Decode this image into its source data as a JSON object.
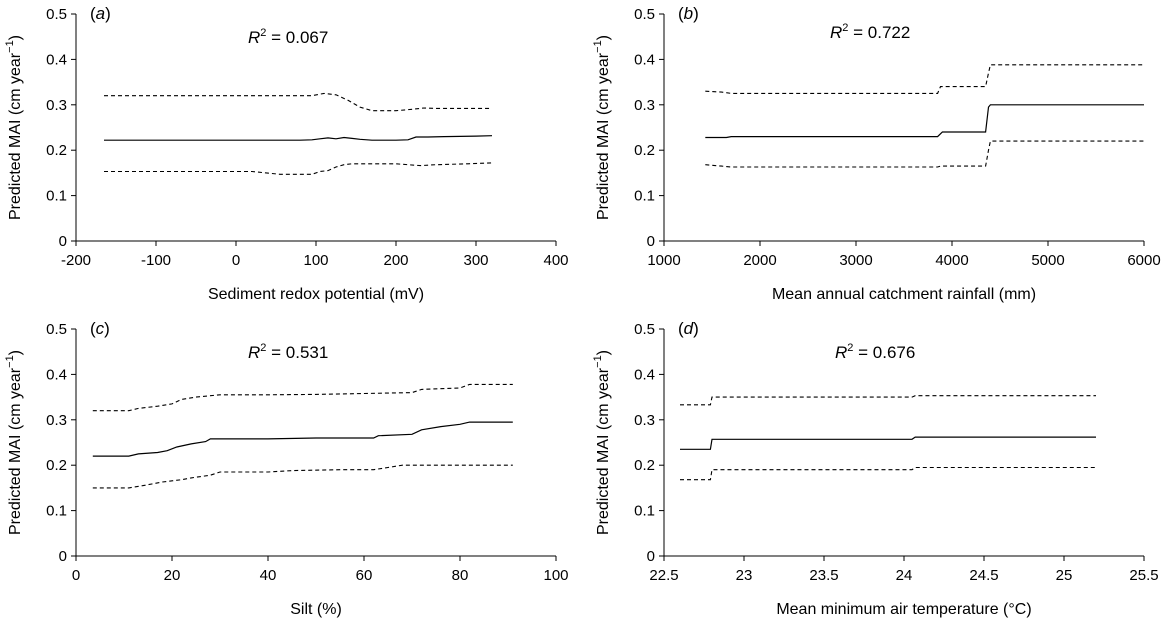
{
  "chart_data": [
    {
      "type": "line",
      "panel_label": "a",
      "r2_label": "R",
      "r2_exp": "2",
      "r2_value": "= 0.067",
      "xlabel": "Sediment redox potential (mV)",
      "ylabel": "Predicted MAI (cm year",
      "ylabel_sup": "−1",
      "ylabel_end": ")",
      "xlim": [
        -200,
        400
      ],
      "ylim": [
        0,
        0.5
      ],
      "x_ticks": [
        -200,
        -100,
        0,
        100,
        200,
        300,
        400
      ],
      "y_ticks": [
        0,
        0.1,
        0.2,
        0.3,
        0.4,
        0.5
      ],
      "series": [
        {
          "name": "upper",
          "style": "dashed",
          "x": [
            -165,
            95,
            110,
            125,
            140,
            155,
            170,
            200,
            220,
            235,
            250,
            300,
            320
          ],
          "y": [
            0.32,
            0.32,
            0.325,
            0.322,
            0.31,
            0.295,
            0.287,
            0.287,
            0.29,
            0.293,
            0.292,
            0.292,
            0.292
          ]
        },
        {
          "name": "predicted",
          "style": "solid",
          "x": [
            -165,
            80,
            95,
            105,
            115,
            125,
            135,
            145,
            155,
            170,
            200,
            215,
            225,
            240,
            260,
            300,
            320
          ],
          "y": [
            0.222,
            0.222,
            0.223,
            0.225,
            0.227,
            0.225,
            0.228,
            0.226,
            0.224,
            0.222,
            0.222,
            0.223,
            0.229,
            0.229,
            0.23,
            0.231,
            0.232
          ]
        },
        {
          "name": "lower",
          "style": "dashed",
          "x": [
            -165,
            20,
            55,
            95,
            105,
            115,
            125,
            135,
            145,
            170,
            200,
            215,
            230,
            250,
            290,
            320
          ],
          "y": [
            0.153,
            0.153,
            0.147,
            0.147,
            0.153,
            0.155,
            0.163,
            0.168,
            0.17,
            0.17,
            0.17,
            0.168,
            0.166,
            0.168,
            0.17,
            0.172
          ]
        }
      ]
    },
    {
      "type": "line",
      "panel_label": "b",
      "r2_label": "R",
      "r2_exp": "2",
      "r2_value": "= 0.722",
      "xlabel": "Mean annual catchment rainfall (mm)",
      "ylabel": "Predicted MAI (cm year",
      "ylabel_sup": "−1",
      "ylabel_end": ")",
      "xlim": [
        1000,
        6000
      ],
      "ylim": [
        0,
        0.5
      ],
      "x_ticks": [
        1000,
        2000,
        3000,
        4000,
        5000,
        6000
      ],
      "y_ticks": [
        0,
        0.1,
        0.2,
        0.3,
        0.4,
        0.5
      ],
      "series": [
        {
          "name": "upper",
          "style": "dashed",
          "x": [
            1430,
            1600,
            1700,
            3850,
            3880,
            4350,
            4380,
            4400,
            6000
          ],
          "y": [
            0.33,
            0.328,
            0.325,
            0.325,
            0.34,
            0.34,
            0.37,
            0.388,
            0.388
          ]
        },
        {
          "name": "predicted",
          "style": "solid",
          "x": [
            1430,
            1650,
            1700,
            3850,
            3900,
            4350,
            4380,
            4400,
            6000
          ],
          "y": [
            0.228,
            0.228,
            0.23,
            0.23,
            0.24,
            0.24,
            0.295,
            0.3,
            0.3
          ]
        },
        {
          "name": "lower",
          "style": "dashed",
          "x": [
            1430,
            1600,
            1700,
            3850,
            3880,
            4350,
            4380,
            4400,
            6000
          ],
          "y": [
            0.168,
            0.165,
            0.163,
            0.163,
            0.165,
            0.165,
            0.2,
            0.22,
            0.22
          ]
        }
      ]
    },
    {
      "type": "line",
      "panel_label": "c",
      "r2_label": "R",
      "r2_exp": "2",
      "r2_value": "= 0.531",
      "xlabel": "Silt (%)",
      "ylabel": "Predicted MAI (cm year",
      "ylabel_sup": "−1",
      "ylabel_end": ")",
      "xlim": [
        0,
        100
      ],
      "ylim": [
        0,
        0.5
      ],
      "x_ticks": [
        0,
        20,
        40,
        60,
        80,
        100
      ],
      "y_ticks": [
        0,
        0.1,
        0.2,
        0.3,
        0.4,
        0.5
      ],
      "series": [
        {
          "name": "upper",
          "style": "dashed",
          "x": [
            3.5,
            11,
            13,
            17,
            20,
            22,
            25,
            28,
            30,
            40,
            50,
            60,
            70,
            72,
            80,
            82,
            91
          ],
          "y": [
            0.32,
            0.32,
            0.325,
            0.33,
            0.335,
            0.345,
            0.35,
            0.353,
            0.355,
            0.355,
            0.356,
            0.358,
            0.36,
            0.367,
            0.37,
            0.378,
            0.378
          ]
        },
        {
          "name": "predicted",
          "style": "solid",
          "x": [
            3.5,
            11,
            13,
            17,
            19,
            21,
            24,
            27,
            28,
            40,
            50,
            62,
            63,
            70,
            72,
            76,
            80,
            82,
            91
          ],
          "y": [
            0.22,
            0.22,
            0.225,
            0.228,
            0.232,
            0.24,
            0.247,
            0.252,
            0.258,
            0.258,
            0.26,
            0.26,
            0.265,
            0.268,
            0.278,
            0.285,
            0.29,
            0.295,
            0.295
          ]
        },
        {
          "name": "lower",
          "style": "dashed",
          "x": [
            3.5,
            11,
            14,
            18,
            22,
            24,
            28,
            30,
            40,
            45,
            55,
            62,
            65,
            68,
            72,
            91
          ],
          "y": [
            0.15,
            0.15,
            0.155,
            0.163,
            0.168,
            0.172,
            0.178,
            0.185,
            0.185,
            0.188,
            0.19,
            0.19,
            0.195,
            0.2,
            0.2,
            0.2
          ]
        }
      ]
    },
    {
      "type": "line",
      "panel_label": "d",
      "r2_label": "R",
      "r2_exp": "2",
      "r2_value": "= 0.676",
      "xlabel": "Mean minimum air temperature (°C)",
      "ylabel": "Predicted MAI (cm year",
      "ylabel_sup": "−1",
      "ylabel_end": ")",
      "xlim": [
        22.5,
        25.5
      ],
      "ylim": [
        0,
        0.5
      ],
      "x_ticks": [
        22.5,
        23,
        23.5,
        24,
        24.5,
        25,
        25.5
      ],
      "x_tick_labels": [
        "22.5",
        "23",
        "23.5",
        "24",
        "24.5",
        "25",
        "25.5"
      ],
      "y_ticks": [
        0,
        0.1,
        0.2,
        0.3,
        0.4,
        0.5
      ],
      "series": [
        {
          "name": "upper",
          "style": "dashed",
          "x": [
            22.6,
            22.79,
            22.8,
            24.05,
            24.07,
            25.2
          ],
          "y": [
            0.333,
            0.333,
            0.35,
            0.35,
            0.353,
            0.353
          ]
        },
        {
          "name": "predicted",
          "style": "solid",
          "x": [
            22.6,
            22.79,
            22.8,
            24.05,
            24.07,
            25.2
          ],
          "y": [
            0.235,
            0.235,
            0.257,
            0.257,
            0.262,
            0.262
          ]
        },
        {
          "name": "lower",
          "style": "dashed",
          "x": [
            22.6,
            22.79,
            22.8,
            24.05,
            24.07,
            25.2
          ],
          "y": [
            0.168,
            0.168,
            0.19,
            0.19,
            0.195,
            0.195
          ]
        }
      ]
    }
  ]
}
